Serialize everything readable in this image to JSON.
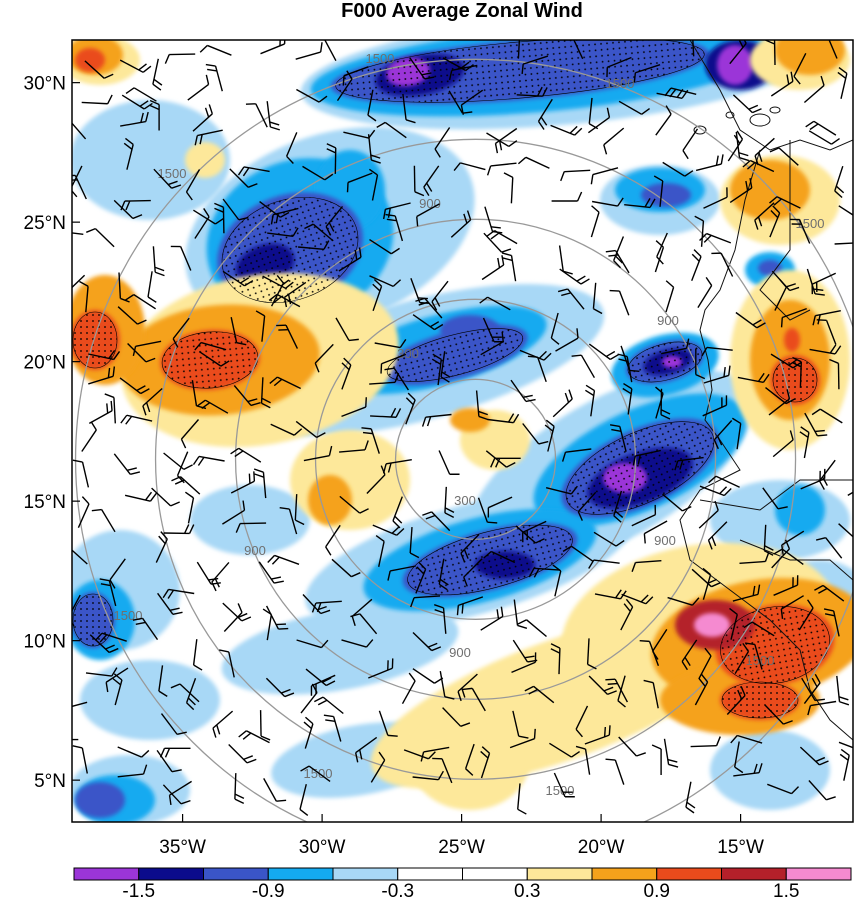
{
  "title": "F000 Average Zonal Wind",
  "y_ticks": [
    "30°N",
    "25°N",
    "20°N",
    "15°N",
    "10°N",
    "5°N"
  ],
  "x_ticks": [
    "35°W",
    "30°W",
    "25°W",
    "20°W",
    "15°W"
  ],
  "colorbar": {
    "labels": [
      "-1.5",
      "-0.9",
      "-0.3",
      "0.3",
      "0.9",
      "1.5"
    ],
    "colors": [
      "#9b35d8",
      "#0b0b8c",
      "#3a55c8",
      "#14aaf0",
      "#a8d8f6",
      "#ffffff",
      "#ffffff",
      "#fde89a",
      "#f5a21b",
      "#ea4b1c",
      "#b4202a",
      "#f58ad0"
    ]
  },
  "range_rings": [
    {
      "label": "300"
    },
    {
      "label": "900"
    },
    {
      "label": "1500"
    }
  ],
  "chart_data": {
    "type": "heatmap",
    "title": "F000 Average Zonal Wind",
    "xlabel": "",
    "ylabel": "",
    "lon_range": [
      -39.0,
      -11.0
    ],
    "lat_range": [
      3.5,
      31.5
    ],
    "contour_levels": [
      -1.8,
      -1.5,
      -1.2,
      -0.9,
      -0.6,
      -0.3,
      0.3,
      0.6,
      0.9,
      1.2,
      1.5,
      1.8
    ],
    "range_ring_center": {
      "lon": -24.5,
      "lat": 16.5
    },
    "range_rings_km": [
      300,
      600,
      900,
      1200,
      1500
    ],
    "stippling": "significant regions",
    "wind_barbs": true
  }
}
